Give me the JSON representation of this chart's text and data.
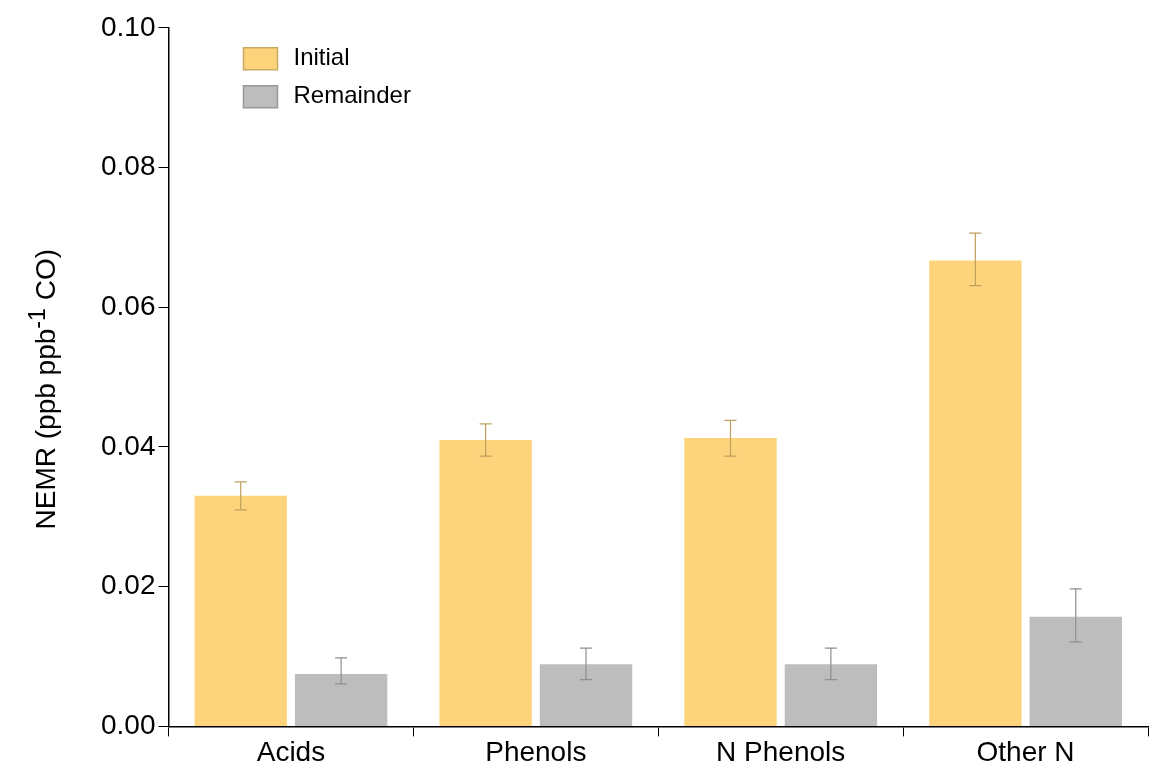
{
  "chart_data": {
    "type": "bar",
    "ylabel": "NEMR (ppb ppb$^{-1}$ CO)",
    "categories": [
      "Acids",
      "Phenols",
      "N Phenols",
      "Other N"
    ],
    "series": [
      {
        "name": "Initial",
        "color": "#fdd47c",
        "values": [
          0.033,
          0.041,
          0.0413,
          0.0667
        ],
        "errors": [
          [
            0.031,
            0.035
          ],
          [
            0.0387,
            0.0433
          ],
          [
            0.0387,
            0.0438
          ],
          [
            0.0631,
            0.0706
          ]
        ]
      },
      {
        "name": "Remainder",
        "color": "#bdbdbd",
        "values": [
          0.0075,
          0.0089,
          0.0089,
          0.0157
        ],
        "errors": [
          [
            0.0061,
            0.0098
          ],
          [
            0.0067,
            0.0112
          ],
          [
            0.0067,
            0.0112
          ],
          [
            0.0121,
            0.0197
          ]
        ]
      }
    ],
    "ylim": [
      0,
      0.1
    ],
    "yticks": [
      {
        "value": 0,
        "label": "0.00"
      },
      {
        "value": 0.02,
        "label": "0.02"
      },
      {
        "value": 0.04,
        "label": "0.04"
      },
      {
        "value": 0.06,
        "label": "0.06"
      },
      {
        "value": 0.08,
        "label": "0.08"
      },
      {
        "value": 0.1,
        "label": "0.10"
      }
    ],
    "grid": false,
    "legend": "top left"
  }
}
